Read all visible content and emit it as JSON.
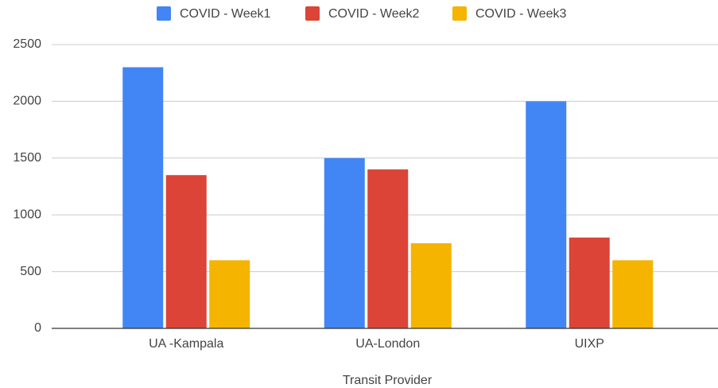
{
  "chart_data": {
    "type": "bar",
    "categories": [
      "UA -Kampala",
      "UA-London",
      "UIXP"
    ],
    "series": [
      {
        "name": "COVID - Week1",
        "color": "#4285f4",
        "values": [
          2300,
          1500,
          2000
        ]
      },
      {
        "name": "COVID - Week2",
        "color": "#db4437",
        "values": [
          1350,
          1400,
          800
        ]
      },
      {
        "name": "COVID - Week3",
        "color": "#f4b400",
        "values": [
          600,
          750,
          600
        ]
      }
    ],
    "xlabel": "Transit Provider",
    "ylim": [
      0,
      2500
    ],
    "yticks": [
      0,
      500,
      1000,
      1500,
      2000,
      2500
    ],
    "grid": true,
    "legend": "top"
  }
}
